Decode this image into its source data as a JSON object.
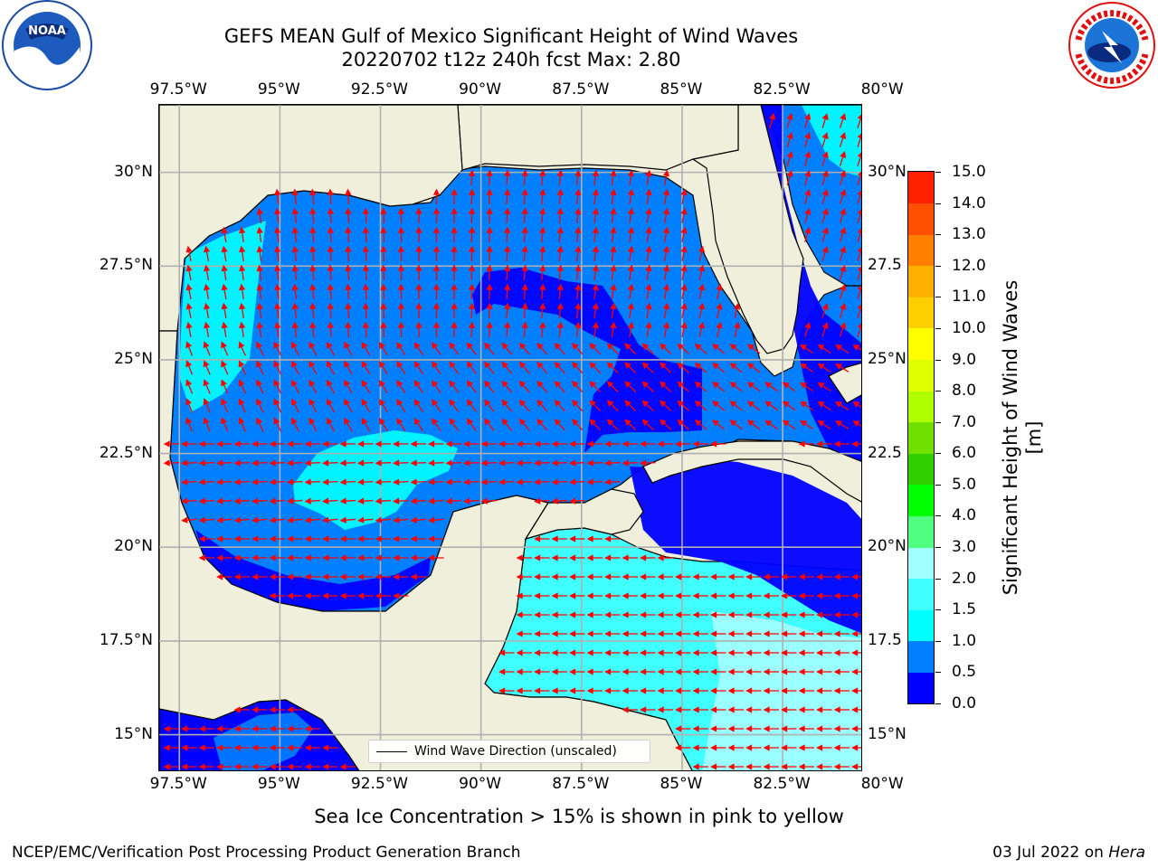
{
  "title": {
    "line1": "GEFS MEAN Gulf of Mexico Significant Height of Wind Waves",
    "line2": "20220702 t12z 240h fcst   Max: 2.80"
  },
  "map": {
    "lon_range": [
      -98,
      -80.5
    ],
    "lat_range": [
      14,
      31.8
    ],
    "x_ticks": [
      "97.5°W",
      "95°W",
      "92.5°W",
      "90°W",
      "87.5°W",
      "85°W",
      "82.5°W",
      "80°W"
    ],
    "x_tick_values": [
      -97.5,
      -95,
      -92.5,
      -90,
      -87.5,
      -85,
      -82.5,
      -80
    ],
    "y_ticks_left": [
      "30°N",
      "27.5°N",
      "25°N",
      "22.5°N",
      "20°N",
      "17.5°N",
      "15°N"
    ],
    "y_ticks_right": [
      "30°N",
      "27.5",
      "25°N",
      "22.5",
      "20°N",
      "17.5",
      "15°N"
    ],
    "y_tick_values": [
      30,
      27.5,
      25,
      22.5,
      20,
      17.5,
      15
    ],
    "gridlines": true,
    "arrow_color": "#ff0000",
    "land_color": "#efefdc"
  },
  "legend": {
    "label": "Wind Wave Direction (unscaled)",
    "placement": "lower-center"
  },
  "colorbar": {
    "title": "Significant Height of Wind Waves [m]",
    "ticks": [
      "0.0",
      "0.5",
      "1.0",
      "1.5",
      "2.0",
      "3.0",
      "4.0",
      "5.0",
      "6.0",
      "7.0",
      "8.0",
      "9.0",
      "10.0",
      "11.0",
      "12.0",
      "13.0",
      "14.0",
      "15.0"
    ],
    "colors": [
      "#0000ff",
      "#0080ff",
      "#00ffff",
      "#40ffff",
      "#a0ffff",
      "#50ff80",
      "#00ff00",
      "#30d000",
      "#70e000",
      "#b0ff00",
      "#e0ff00",
      "#ffff00",
      "#ffd000",
      "#ffb000",
      "#ff8000",
      "#ff5000",
      "#ff2000"
    ]
  },
  "caption": "Sea Ice Concentration > 15% is shown in pink to yellow",
  "footer": {
    "left": "NCEP/EMC/Verification Post Processing Product Generation Branch",
    "right_prefix": "03 Jul 2022 on ",
    "right_host": "Hera"
  },
  "logos": {
    "left": "noaa-logo",
    "right": "national-weather-service-logo"
  }
}
